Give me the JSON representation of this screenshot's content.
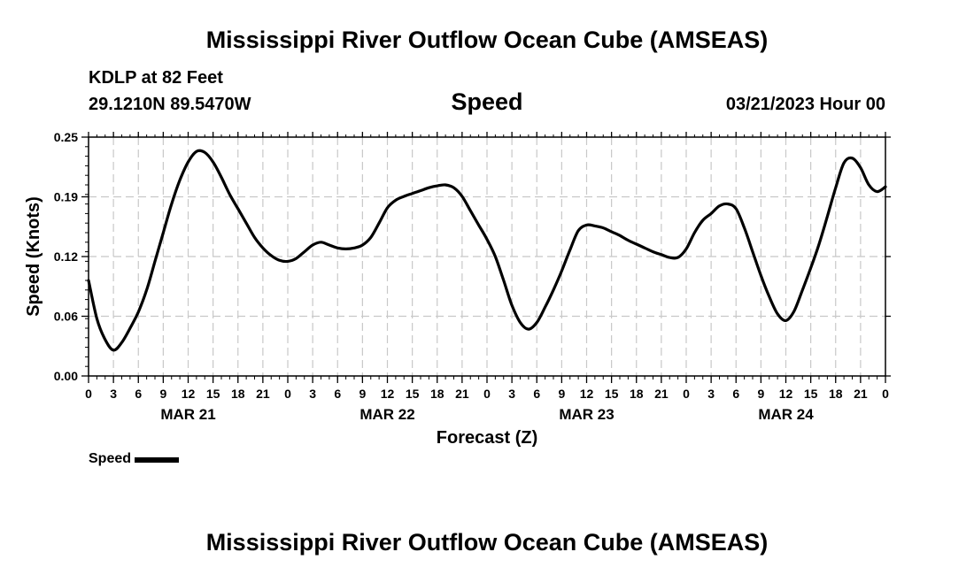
{
  "header": {
    "title": "Mississippi River Outflow Ocean Cube (AMSEAS)",
    "station": "KDLP at 82 Feet",
    "coords": "29.1210N  89.5470W",
    "variable": "Speed",
    "datetime": "03/21/2023 Hour 00"
  },
  "footer": {
    "title": "Mississippi River Outflow Ocean Cube (AMSEAS)"
  },
  "legend": {
    "label": "Speed"
  },
  "chart_data": {
    "type": "line",
    "title": "Speed",
    "xlabel": "Forecast (Z)",
    "ylabel": "Speed (Knots)",
    "ylim": [
      0,
      0.25
    ],
    "yticks": [
      "0.00",
      "0.06",
      "0.12",
      "0.19",
      "0.25"
    ],
    "ytick_values": [
      0,
      0.0625,
      0.125,
      0.1875,
      0.25
    ],
    "xlim_hours": [
      0,
      96
    ],
    "xtick_labels": [
      "0",
      "3",
      "6",
      "9",
      "12",
      "15",
      "18",
      "21",
      "0",
      "3",
      "6",
      "9",
      "12",
      "15",
      "18",
      "21",
      "0",
      "3",
      "6",
      "9",
      "12",
      "15",
      "18",
      "21",
      "0",
      "3",
      "6",
      "9",
      "12",
      "15",
      "18",
      "21",
      "0"
    ],
    "day_labels": [
      {
        "label": "MAR 21",
        "hour": 12
      },
      {
        "label": "MAR 22",
        "hour": 36
      },
      {
        "label": "MAR 23",
        "hour": 60
      },
      {
        "label": "MAR 24",
        "hour": 84
      }
    ],
    "grid": true,
    "legend_position": "bottom-left",
    "series": [
      {
        "name": "Speed",
        "color": "#000000",
        "x": [
          0,
          1,
          2,
          3,
          4,
          5,
          6,
          7,
          8,
          9,
          10,
          11,
          12,
          13,
          14,
          15,
          16,
          17,
          18,
          19,
          20,
          21,
          22,
          23,
          24,
          25,
          26,
          27,
          28,
          29,
          30,
          31,
          32,
          33,
          34,
          35,
          36,
          37,
          38,
          39,
          40,
          41,
          42,
          43,
          44,
          45,
          46,
          47,
          48,
          49,
          50,
          51,
          52,
          53,
          54,
          55,
          56,
          57,
          58,
          59,
          60,
          61,
          62,
          63,
          64,
          65,
          66,
          67,
          68,
          69,
          70,
          71,
          72,
          73,
          74,
          75,
          76,
          77,
          78,
          79,
          80,
          81,
          82,
          83,
          84,
          85,
          86,
          87,
          88,
          89,
          90,
          91,
          92,
          93,
          94,
          95,
          96
        ],
        "y": [
          0.1,
          0.06,
          0.038,
          0.027,
          0.035,
          0.05,
          0.067,
          0.09,
          0.12,
          0.15,
          0.18,
          0.205,
          0.224,
          0.235,
          0.234,
          0.224,
          0.208,
          0.19,
          0.175,
          0.16,
          0.145,
          0.134,
          0.126,
          0.121,
          0.12,
          0.123,
          0.13,
          0.137,
          0.14,
          0.137,
          0.134,
          0.133,
          0.134,
          0.137,
          0.145,
          0.16,
          0.176,
          0.184,
          0.188,
          0.191,
          0.194,
          0.197,
          0.199,
          0.2,
          0.197,
          0.188,
          0.173,
          0.158,
          0.143,
          0.125,
          0.1,
          0.074,
          0.056,
          0.049,
          0.056,
          0.072,
          0.09,
          0.11,
          0.132,
          0.152,
          0.158,
          0.157,
          0.155,
          0.151,
          0.147,
          0.142,
          0.138,
          0.134,
          0.13,
          0.127,
          0.124,
          0.124,
          0.133,
          0.15,
          0.163,
          0.17,
          0.178,
          0.18,
          0.175,
          0.155,
          0.13,
          0.105,
          0.083,
          0.065,
          0.058,
          0.068,
          0.09,
          0.113,
          0.138,
          0.167,
          0.197,
          0.223,
          0.228,
          0.218,
          0.2,
          0.193,
          0.198
        ]
      }
    ]
  }
}
